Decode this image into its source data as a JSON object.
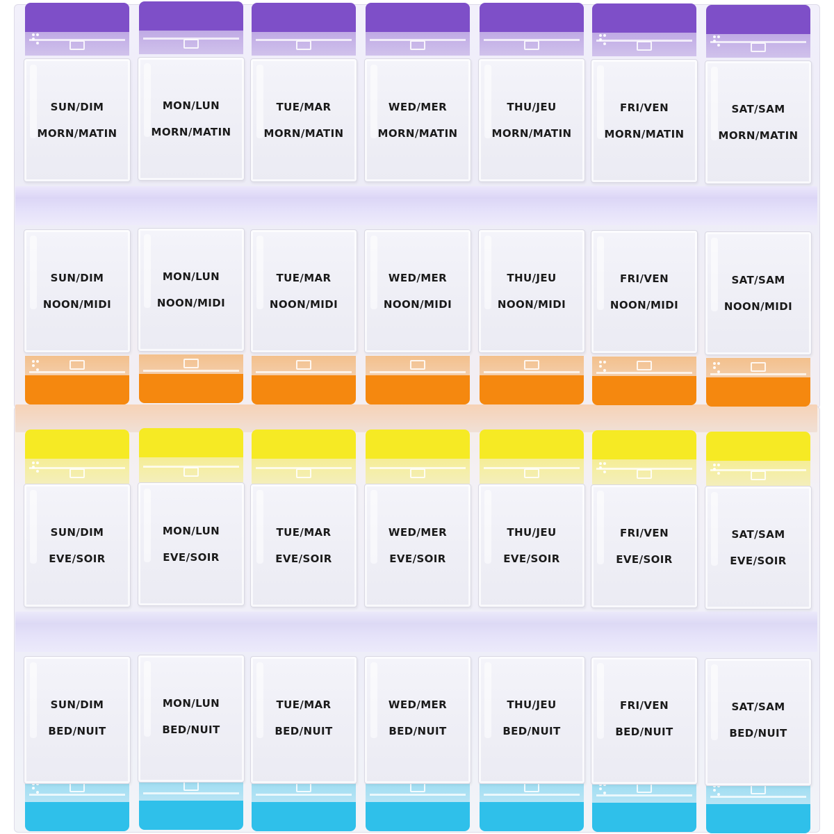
{
  "rows": [
    {
      "time_label": "MORN/MATIN",
      "tab_color": "#7e4fc8",
      "tab_position": "top",
      "days": [
        "SUN/DIM",
        "MON/LUN",
        "TUE/MAR",
        "WED/MER",
        "THU/JEU",
        "FRI/VEN",
        "SAT/SAM"
      ]
    },
    {
      "time_label": "NOON/MIDI",
      "tab_color": "#f5880f",
      "tab_position": "bottom",
      "days": [
        "SUN/DIM",
        "MON/LUN",
        "TUE/MAR",
        "WED/MER",
        "THU/JEU",
        "FRI/VEN",
        "SAT/SAM"
      ]
    },
    {
      "time_label": "EVE/SOIR",
      "tab_color": "#f6ea24",
      "tab_position": "top",
      "days": [
        "SUN/DIM",
        "MON/LUN",
        "TUE/MAR",
        "WED/MER",
        "THU/JEU",
        "FRI/VEN",
        "SAT/SAM"
      ]
    },
    {
      "time_label": "BED/NUIT",
      "tab_color": "#2fc0ea",
      "tab_position": "bottom",
      "days": [
        "SUN/DIM",
        "MON/LUN",
        "TUE/MAR",
        "WED/MER",
        "THU/JEU",
        "FRI/VEN",
        "SAT/SAM"
      ]
    }
  ]
}
